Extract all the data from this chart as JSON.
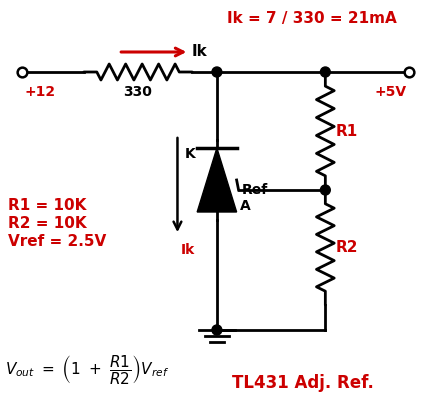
{
  "bg_color": "#ffffff",
  "line_color": "#000000",
  "red_color": "#cc0000",
  "title": "TL431 Adj. Ref.",
  "annotation_ik_eq": "Ik = 7 / 330 = 21mA",
  "annotation_r1": "R1 = 10K",
  "annotation_r2": "R2 = 10K",
  "annotation_vref": "Vref = 2.5V",
  "label_330": "330",
  "label_ik_arrow": "Ik",
  "label_K": "K",
  "label_A": "A",
  "label_Ref": "Ref",
  "label_R1": "R1",
  "label_R2": "R2",
  "label_12v": "+12",
  "label_5v": "+5V"
}
